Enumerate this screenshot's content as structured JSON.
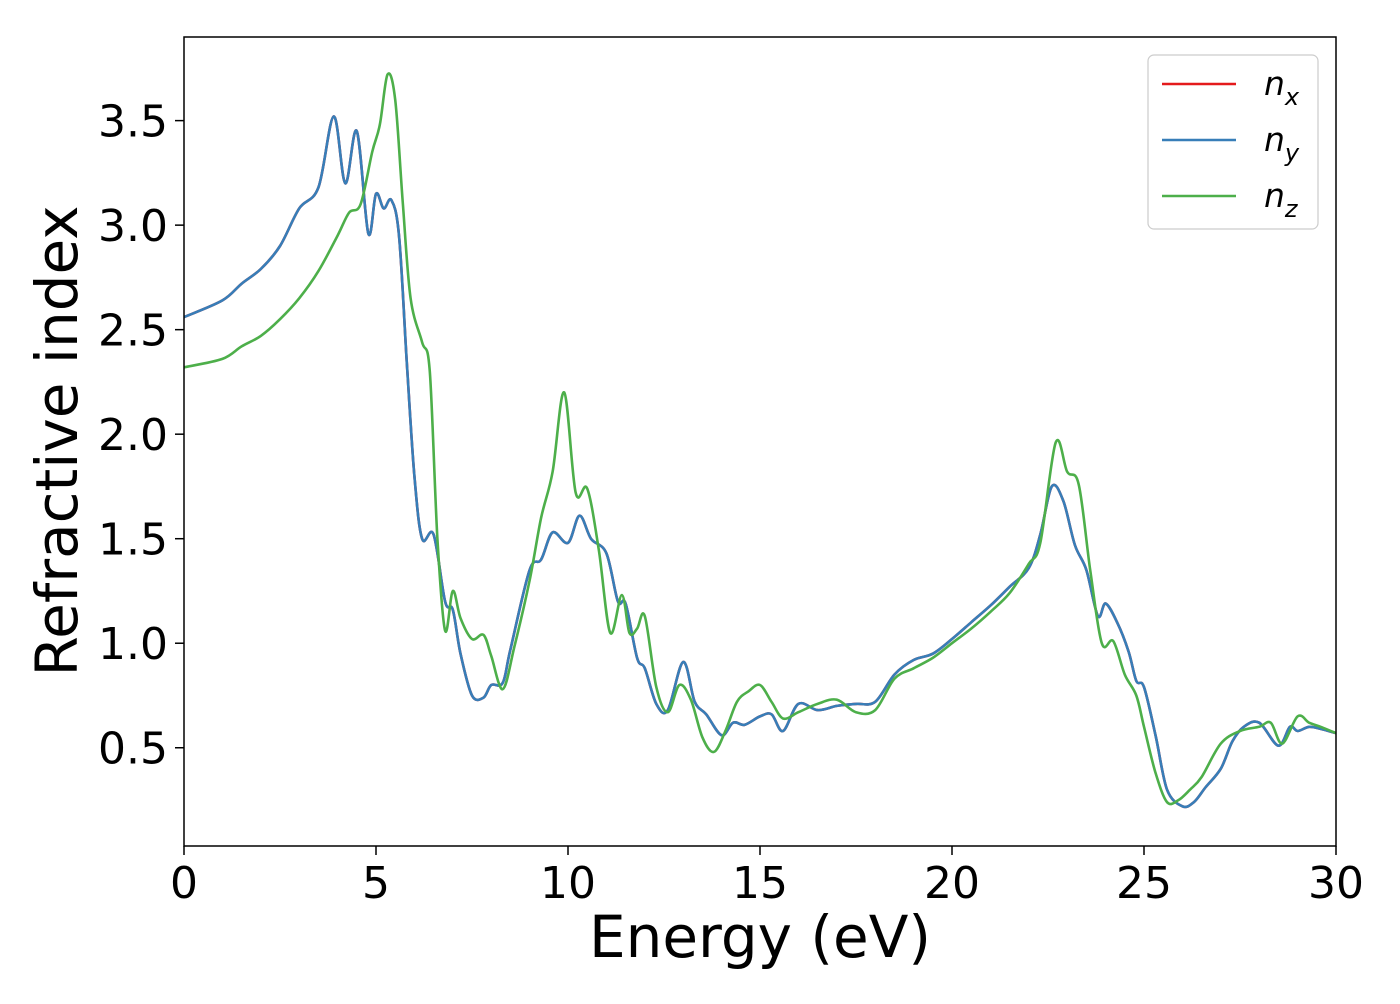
{
  "chart_data": {
    "type": "line",
    "xlabel": "Energy (eV)",
    "ylabel": "Refractive index",
    "xlim": [
      0,
      30
    ],
    "ylim": [
      0.03,
      3.9
    ],
    "xticks": [
      0,
      5,
      10,
      15,
      20,
      25,
      30
    ],
    "xtick_labels": [
      "0",
      "5",
      "10",
      "15",
      "20",
      "25",
      "30"
    ],
    "yticks": [
      0.5,
      1.0,
      1.5,
      2.0,
      2.5,
      3.0,
      3.5
    ],
    "ytick_labels": [
      "0.5",
      "1.0",
      "1.5",
      "2.0",
      "2.5",
      "3.0",
      "3.5"
    ],
    "grid": false,
    "legend_position": "top-right",
    "series": [
      {
        "name": "n_x",
        "legend_base": "n",
        "legend_sub": "x",
        "color": "#e41a1c",
        "x": [
          0,
          1,
          1.5,
          2,
          2.5,
          3,
          3.5,
          3.9,
          4.2,
          4.5,
          4.8,
          5.0,
          5.2,
          5.4,
          5.6,
          5.8,
          6.0,
          6.2,
          6.5,
          6.8,
          7.0,
          7.2,
          7.5,
          7.8,
          8.0,
          8.3,
          8.5,
          9.0,
          9.3,
          9.6,
          10.0,
          10.3,
          10.6,
          11.0,
          11.3,
          11.5,
          11.8,
          12.0,
          12.3,
          12.6,
          13.0,
          13.3,
          13.6,
          14.0,
          14.3,
          14.6,
          15.0,
          15.3,
          15.6,
          16.0,
          16.5,
          17.0,
          17.5,
          18.0,
          18.5,
          19.0,
          19.5,
          20.0,
          20.5,
          21.0,
          21.5,
          22.0,
          22.3,
          22.6,
          22.9,
          23.2,
          23.5,
          23.8,
          24.0,
          24.3,
          24.6,
          24.8,
          25.0,
          25.3,
          25.6,
          26.0,
          26.3,
          26.6,
          27.0,
          27.3,
          27.6,
          28.0,
          28.5,
          28.8,
          29.0,
          29.3,
          29.6,
          30.0
        ],
        "values": [
          2.56,
          2.64,
          2.72,
          2.79,
          2.9,
          3.08,
          3.18,
          3.52,
          3.2,
          3.45,
          2.96,
          3.15,
          3.08,
          3.12,
          2.95,
          2.35,
          1.8,
          1.5,
          1.52,
          1.2,
          1.16,
          0.95,
          0.75,
          0.74,
          0.8,
          0.81,
          0.97,
          1.35,
          1.4,
          1.53,
          1.48,
          1.61,
          1.5,
          1.43,
          1.2,
          1.19,
          0.93,
          0.88,
          0.71,
          0.68,
          0.91,
          0.72,
          0.66,
          0.56,
          0.62,
          0.61,
          0.65,
          0.66,
          0.58,
          0.71,
          0.68,
          0.7,
          0.71,
          0.72,
          0.85,
          0.92,
          0.95,
          1.02,
          1.1,
          1.18,
          1.27,
          1.36,
          1.52,
          1.75,
          1.68,
          1.47,
          1.35,
          1.13,
          1.19,
          1.1,
          0.96,
          0.82,
          0.79,
          0.56,
          0.3,
          0.22,
          0.24,
          0.31,
          0.4,
          0.53,
          0.6,
          0.62,
          0.51,
          0.6,
          0.58,
          0.6,
          0.59,
          0.57
        ]
      },
      {
        "name": "n_y",
        "legend_base": "n",
        "legend_sub": "y",
        "color": "#377eb8",
        "x": [
          0,
          1,
          1.5,
          2,
          2.5,
          3,
          3.5,
          3.9,
          4.2,
          4.5,
          4.8,
          5.0,
          5.2,
          5.4,
          5.6,
          5.8,
          6.0,
          6.2,
          6.5,
          6.8,
          7.0,
          7.2,
          7.5,
          7.8,
          8.0,
          8.3,
          8.5,
          9.0,
          9.3,
          9.6,
          10.0,
          10.3,
          10.6,
          11.0,
          11.3,
          11.5,
          11.8,
          12.0,
          12.3,
          12.6,
          13.0,
          13.3,
          13.6,
          14.0,
          14.3,
          14.6,
          15.0,
          15.3,
          15.6,
          16.0,
          16.5,
          17.0,
          17.5,
          18.0,
          18.5,
          19.0,
          19.5,
          20.0,
          20.5,
          21.0,
          21.5,
          22.0,
          22.3,
          22.6,
          22.9,
          23.2,
          23.5,
          23.8,
          24.0,
          24.3,
          24.6,
          24.8,
          25.0,
          25.3,
          25.6,
          26.0,
          26.3,
          26.6,
          27.0,
          27.3,
          27.6,
          28.0,
          28.5,
          28.8,
          29.0,
          29.3,
          29.6,
          30.0
        ],
        "values": [
          2.56,
          2.64,
          2.72,
          2.79,
          2.9,
          3.08,
          3.18,
          3.52,
          3.2,
          3.45,
          2.96,
          3.15,
          3.08,
          3.12,
          2.95,
          2.35,
          1.8,
          1.5,
          1.52,
          1.2,
          1.16,
          0.95,
          0.75,
          0.74,
          0.8,
          0.81,
          0.97,
          1.35,
          1.4,
          1.53,
          1.48,
          1.61,
          1.5,
          1.43,
          1.2,
          1.19,
          0.93,
          0.88,
          0.71,
          0.68,
          0.91,
          0.72,
          0.66,
          0.56,
          0.62,
          0.61,
          0.65,
          0.66,
          0.58,
          0.71,
          0.68,
          0.7,
          0.71,
          0.72,
          0.85,
          0.92,
          0.95,
          1.02,
          1.1,
          1.18,
          1.27,
          1.36,
          1.52,
          1.75,
          1.68,
          1.47,
          1.35,
          1.13,
          1.19,
          1.1,
          0.96,
          0.82,
          0.79,
          0.56,
          0.3,
          0.22,
          0.24,
          0.31,
          0.4,
          0.53,
          0.6,
          0.62,
          0.51,
          0.6,
          0.58,
          0.6,
          0.59,
          0.57
        ]
      },
      {
        "name": "n_z",
        "legend_base": "n",
        "legend_sub": "z",
        "color": "#4daf4a",
        "x": [
          0,
          1,
          1.5,
          2,
          2.5,
          3,
          3.5,
          4.0,
          4.3,
          4.6,
          4.9,
          5.1,
          5.3,
          5.5,
          5.7,
          5.9,
          6.2,
          6.4,
          6.6,
          6.8,
          7.0,
          7.2,
          7.5,
          7.8,
          8.0,
          8.3,
          8.6,
          9.0,
          9.3,
          9.6,
          9.9,
          10.2,
          10.5,
          10.8,
          11.1,
          11.4,
          11.6,
          11.8,
          12.0,
          12.3,
          12.6,
          12.9,
          13.2,
          13.5,
          13.8,
          14.1,
          14.4,
          14.7,
          15.0,
          15.3,
          15.6,
          16.0,
          16.5,
          17.0,
          17.5,
          18.0,
          18.5,
          19.0,
          19.5,
          20.0,
          20.5,
          21.0,
          21.5,
          22.0,
          22.3,
          22.7,
          23.0,
          23.3,
          23.6,
          23.9,
          24.2,
          24.5,
          24.8,
          25.0,
          25.3,
          25.6,
          25.9,
          26.2,
          26.5,
          27.0,
          27.5,
          28.0,
          28.3,
          28.6,
          29.0,
          29.3,
          29.6,
          30.0
        ],
        "values": [
          2.32,
          2.36,
          2.42,
          2.47,
          2.55,
          2.65,
          2.78,
          2.95,
          3.06,
          3.1,
          3.35,
          3.48,
          3.72,
          3.6,
          3.1,
          2.65,
          2.44,
          2.3,
          1.5,
          1.06,
          1.25,
          1.12,
          1.02,
          1.04,
          0.94,
          0.78,
          0.98,
          1.3,
          1.6,
          1.82,
          2.2,
          1.72,
          1.74,
          1.45,
          1.05,
          1.23,
          1.05,
          1.07,
          1.13,
          0.79,
          0.67,
          0.8,
          0.73,
          0.55,
          0.48,
          0.58,
          0.72,
          0.77,
          0.8,
          0.72,
          0.64,
          0.67,
          0.71,
          0.73,
          0.67,
          0.68,
          0.83,
          0.88,
          0.93,
          1.0,
          1.07,
          1.15,
          1.24,
          1.38,
          1.48,
          1.96,
          1.82,
          1.76,
          1.35,
          1.0,
          1.01,
          0.85,
          0.75,
          0.6,
          0.38,
          0.24,
          0.25,
          0.3,
          0.36,
          0.52,
          0.58,
          0.6,
          0.62,
          0.52,
          0.65,
          0.62,
          0.6,
          0.57
        ]
      }
    ]
  }
}
